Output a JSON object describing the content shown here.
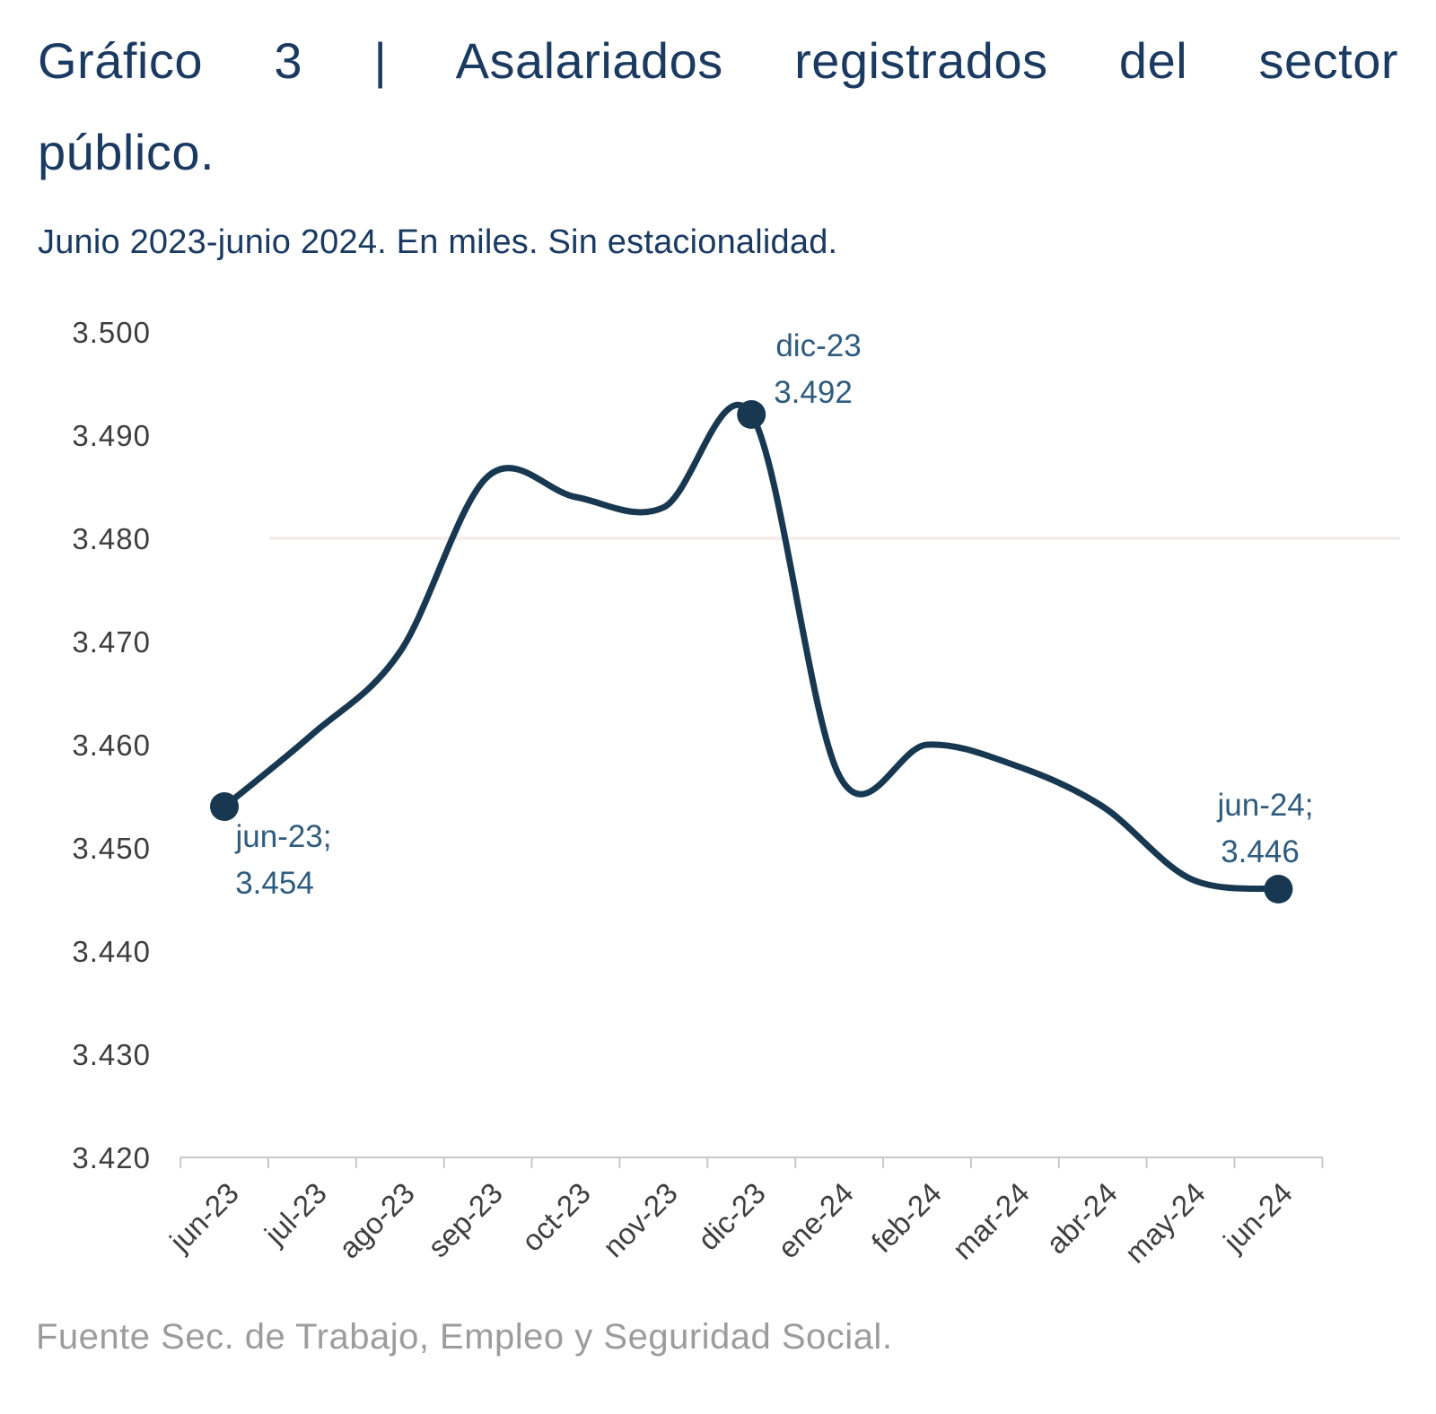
{
  "header": {
    "title_line1": "Gráfico 3 | Asalariados registrados del sector",
    "title_line2": "público.",
    "subtitle": "Junio 2023-junio 2024. En miles. Sin estacionalidad."
  },
  "chart_data": {
    "type": "line",
    "title": "Gráfico 3 | Asalariados registrados del sector público.",
    "subtitle": "Junio 2023-junio 2024. En miles. Sin estacionalidad.",
    "categories": [
      "jun-23",
      "jul-23",
      "ago-23",
      "sep-23",
      "oct-23",
      "nov-23",
      "dic-23",
      "ene-24",
      "feb-24",
      "mar-24",
      "abr-24",
      "may-24",
      "jun-24"
    ],
    "values": [
      3454,
      3461,
      3469,
      3486,
      3484,
      3483,
      3492,
      3457,
      3460,
      3458,
      3454,
      3447,
      3446
    ],
    "unit": "miles",
    "xlabel": "",
    "ylabel": "",
    "ylim": [
      3420,
      3500
    ],
    "y_tick_step": 10,
    "y_tick_labels": [
      "3.500",
      "3.490",
      "3.480",
      "3.470",
      "3.460",
      "3.450",
      "3.440",
      "3.430",
      "3.420"
    ],
    "grid": "single faint horizontal gridline at 3.480",
    "legend": "none",
    "line_smoothing": true,
    "annotations": [
      {
        "index": 0,
        "line1": "jun-23;",
        "line2": "3.454"
      },
      {
        "index": 6,
        "line1": "dic-23",
        "line2": "3.492"
      },
      {
        "index": 12,
        "line1": "jun-24;",
        "line2": "3.446"
      }
    ]
  },
  "footer": {
    "source": "Fuente Sec. de Trabajo, Empleo y Seguridad Social."
  },
  "colors": {
    "title": "#1a3a62",
    "line": "#173850",
    "annotation": "#2f5c7e",
    "axis_text": "#3e3e3e",
    "axis_line": "#c9c9c9",
    "gridline": "#f6eeec",
    "source_text": "#9c9c9c"
  }
}
